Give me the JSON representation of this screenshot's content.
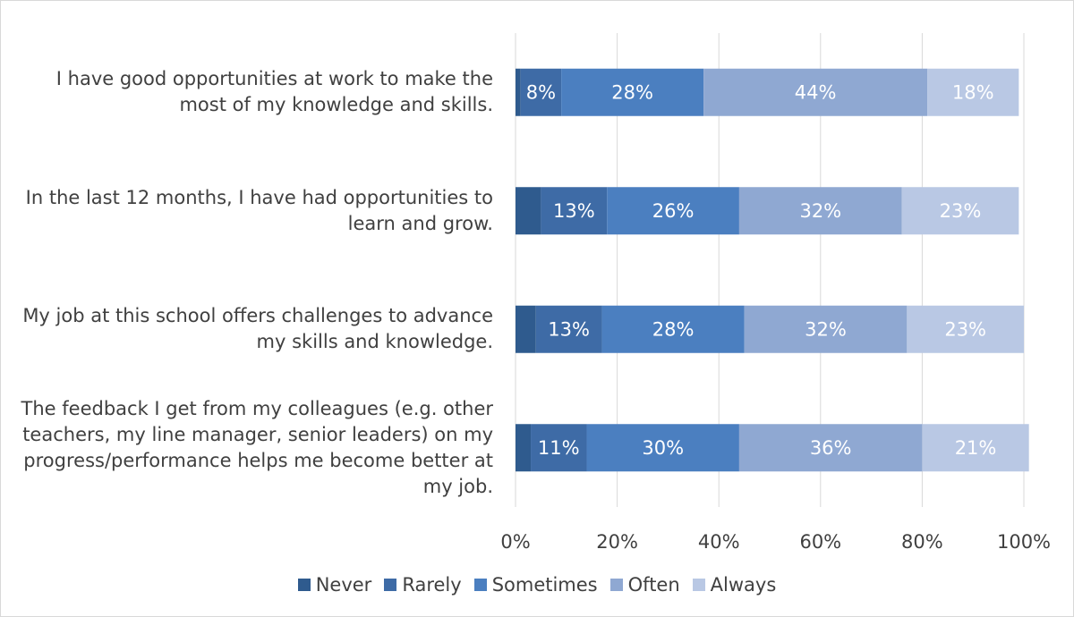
{
  "chart_data": {
    "type": "stacked-bar-horizontal",
    "categories": [
      "I have good opportunities at work to make the most of my knowledge and skills.",
      "In the last 12 months, I have had opportunities to learn and grow.",
      "My job at this school offers challenges to advance my skills and knowledge.",
      "The feedback I get from my colleagues (e.g. other teachers, my line manager, senior leaders) on my progress/performance helps me become better at my job."
    ],
    "series": [
      {
        "name": "Never",
        "color": "#2f5b8e",
        "values": [
          1,
          5,
          4,
          3
        ]
      },
      {
        "name": "Rarely",
        "color": "#3e6ba6",
        "values": [
          8,
          13,
          13,
          11
        ],
        "value_labels": [
          "8%",
          "13%",
          "13%",
          "11%"
        ]
      },
      {
        "name": "Sometimes",
        "color": "#4b7fc0",
        "values": [
          28,
          26,
          28,
          30
        ],
        "value_labels": [
          "28%",
          "26%",
          "28%",
          "30%"
        ]
      },
      {
        "name": "Often",
        "color": "#8fa8d2",
        "values": [
          44,
          32,
          32,
          36
        ],
        "value_labels": [
          "44%",
          "32%",
          "32%",
          "36%"
        ]
      },
      {
        "name": "Always",
        "color": "#b9c8e4",
        "values": [
          18,
          23,
          23,
          21
        ],
        "value_labels": [
          "18%",
          "23%",
          "23%",
          "21%"
        ]
      }
    ],
    "xlim": [
      0,
      100
    ],
    "xticks": [
      {
        "value": 0,
        "label": "0%"
      },
      {
        "value": 20,
        "label": "20%"
      },
      {
        "value": 40,
        "label": "40%"
      },
      {
        "value": 60,
        "label": "60%"
      },
      {
        "value": 80,
        "label": "80%"
      },
      {
        "value": 100,
        "label": "100%"
      }
    ],
    "grid": true,
    "legend": "bottom"
  }
}
